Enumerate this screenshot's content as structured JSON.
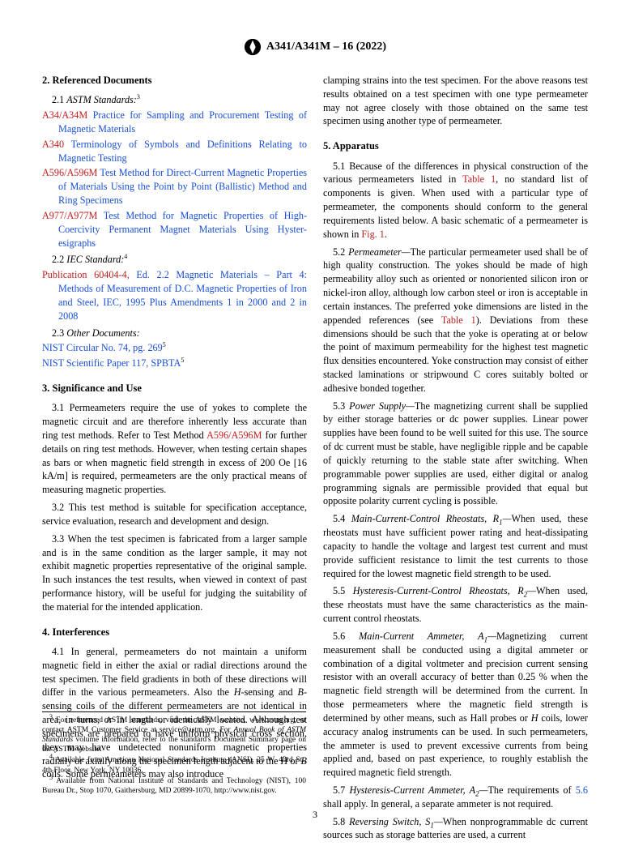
{
  "header": {
    "standard_id": "A341/A341M – 16 (2022)"
  },
  "sec2": {
    "title": "2.  Referenced Documents",
    "s2_1": "2.1 ",
    "s2_1_label": "ASTM Standards:",
    "s2_1_sup": "3",
    "refs_astm": [
      {
        "std": "A34/A34M ",
        "title": "Practice for Sampling and Procurement Testing of Magnetic Materials"
      },
      {
        "std": "A340 ",
        "title": "Terminology of Symbols and Definitions Relating to Magnetic Testing"
      },
      {
        "std": "A596/A596M ",
        "title": "Test Method for Direct-Current Magnetic Properties of Materials Using the Point by Point (Ballistic) Method and Ring Specimens"
      },
      {
        "std": "A977/A977M ",
        "title": "Test Method for Magnetic Properties of High-Coercivity Permanent Magnet Materials Using Hyster-esigraphs"
      }
    ],
    "s2_2": "2.2 ",
    "s2_2_label": "IEC Standard:",
    "s2_2_sup": "4",
    "iec": {
      "std": "Publication 60404-4, ",
      "title": "Ed. 2.2 Magnetic Materials – Part 4: Methods of Measurement of D.C. Magnetic Properties of Iron and Steel, IEC, 1995 Plus Amendments 1 in 2000 and 2 in 2008"
    },
    "s2_3": "2.3 ",
    "s2_3_label": "Other Documents:",
    "nist1": "NIST Circular No. 74, pg. 269",
    "nist1_sup": "5",
    "nist2": "NIST Scientific Paper 117, SPBTA",
    "nist2_sup": "5"
  },
  "sec3": {
    "title": "3.  Significance and Use",
    "p1a": "3.1 Permeameters require the use of yokes to complete the magnetic circuit and are therefore inherently less accurate than ring test methods. Refer to Test Method ",
    "p1_link": "A596/A596M",
    "p1b": " for further details on ring test methods. However, when testing certain shapes as bars or when magnetic field strength in excess of 200 Oe [16 kA/m] is required, permeameters are the only practical means of measuring magnetic properties.",
    "p2": "3.2 This test method is suitable for specification acceptance, service evaluation, research and development and design.",
    "p3": "3.3 When the test specimen is fabricated from a larger sample and is in the same condition as the larger sample, it may not exhibit magnetic properties representative of the original sample. In such instances the test results, when viewed in context of past performance history, will be useful for judging the suitability of the material for the intended application."
  },
  "sec4": {
    "title": "4.  Interferences",
    "p1a": "4.1 In general, permeameters do not maintain a uniform magnetic field in either the axial or radial directions around the test specimen. The field gradients in both of these directions will differ in the various permeameters. Also the ",
    "p1_H1": "H",
    "p1b": "-sensing and ",
    "p1_B": "B",
    "p1c": "-sensing coils of the different permeameters are not identical in area, in turns, or in length or identically located. Although test specimens are prepared to have uniform physical cross section, they may have undetected nonuniform magnetic properties radially or axially along the specimen length adjacent to the ",
    "p1_H2": "H",
    "p1d": " or ",
    "p1_B2": "B",
    "p1e": " coils. Some permeameters may also introduce ",
    "p1f": "clamping strains into the test specimen. For the above reasons test results obtained on a test specimen with one type permeameter may not agree closely with those obtained on the same test specimen using another type of permeameter."
  },
  "sec5": {
    "title": "5.  Apparatus",
    "p1a": "5.1 Because of the differences in physical construction of the various permeameters listed in ",
    "p1_link1": "Table 1",
    "p1b": ", no standard list of components is given. When used with a particular type of permeameter, the components should conform to the general requirements listed below. A basic schematic of a permeameter is shown in ",
    "p1_link2": "Fig. 1",
    "p1c": ".",
    "p2_num": "5.2 ",
    "p2_label": "Permeameter—",
    "p2a": "The particular permeameter used shall be of high quality construction. The yokes should be made of high permeability alloy such as oriented or nonoriented silicon iron or nickel-iron alloy, although low carbon steel or iron is acceptable in certain instances. The preferred yoke dimensions are listed in the appended references (see ",
    "p2_link": "Table 1",
    "p2b": "). Deviations from these dimensions should be such that the yoke is operating at or below the point of maximum permeability for the highest test magnetic flux densities encountered. Yoke construction may consist of either stacked laminations or stripwound C cores suitably bolted or adhesive bonded together.",
    "p3_num": "5.3 ",
    "p3_label": "Power Supply—",
    "p3": "The magnetizing current shall be supplied by either storage batteries or dc power supplies. Linear power supplies have been found to be well suited for this use. The source of dc current must be stable, have negligible ripple and be capable of quickly returning to the stable state after switching. When programmable power supplies are used, either digital or analog programming signals are permissible provided that equal but opposite polarity current cycling is possible.",
    "p4_num": "5.4 ",
    "p4_label": "Main-Current-Control Rheostats, R",
    "p4_sub": "1",
    "p4_dash": "—",
    "p4": "When used, these rheostats must have sufficient power rating and heat-dissipating capacity to handle the voltage and largest test current and must provide sufficient resistance to limit the test currents to those required for the lowest magnetic field strength to be used.",
    "p5_num": "5.5 ",
    "p5_label": "Hysteresis-Current-Control Rheostats, R",
    "p5_sub": "2",
    "p5_dash": "—",
    "p5": "When used, these rheostats must have the same characteristics as the main-current control rheostats.",
    "p6_num": "5.6 ",
    "p6_label": "Main-Current Ammeter, A",
    "p6_sub": "1",
    "p6_dash": "—",
    "p6a": "Magnetizing current measurement shall be conducted using a digital ammeter or combination of a digital voltmeter and precision current sensing resistor with an overall accuracy of better than 0.25 % when the magnetic field strength will be determined from the current. In those permeameters where the magnetic field strength is determined by other means, such as Hall probes or ",
    "p6_H": "H",
    "p6b": " coils, lower accuracy analog instruments can be used. In such permeameters, the ammeter is used to prevent excessive currents from being applied and, based on past experience, to roughly establish the required magnetic field strength.",
    "p7_num": "5.7 ",
    "p7_label": "Hysteresis-Current Ammeter, A",
    "p7_sub": "2",
    "p7_dash": "—",
    "p7a": "The requirements of ",
    "p7_link": "5.6",
    "p7b": " shall apply. In general, a separate ammeter is not required.",
    "p8_num": "5.8 ",
    "p8_label": "Reversing Switch, S",
    "p8_sub": "1",
    "p8_dash": "—",
    "p8": "When nonprogrammable dc current sources such as storage batteries are used, a current"
  },
  "footnotes": {
    "f3": "For referenced ASTM standards, visit the ASTM website, www.astm.org, or contact ASTM Customer Service at service@astm.org. For ",
    "f3_i": "Annual Book of ASTM Standards",
    "f3b": " volume information, refer to the standard's Document Summary page on the ASTM website.",
    "f4": "Available from American National Standards Institute (ANSI), 25 W. 43rd St., 4th Floor, New York, NY 10036.",
    "f5": "Available from National Institute of Standards and Technology (NIST), 100 Bureau Dr., Stop 1070, Gaithersburg, MD 20899-1070, http://www.nist.gov."
  },
  "page_number": "3"
}
